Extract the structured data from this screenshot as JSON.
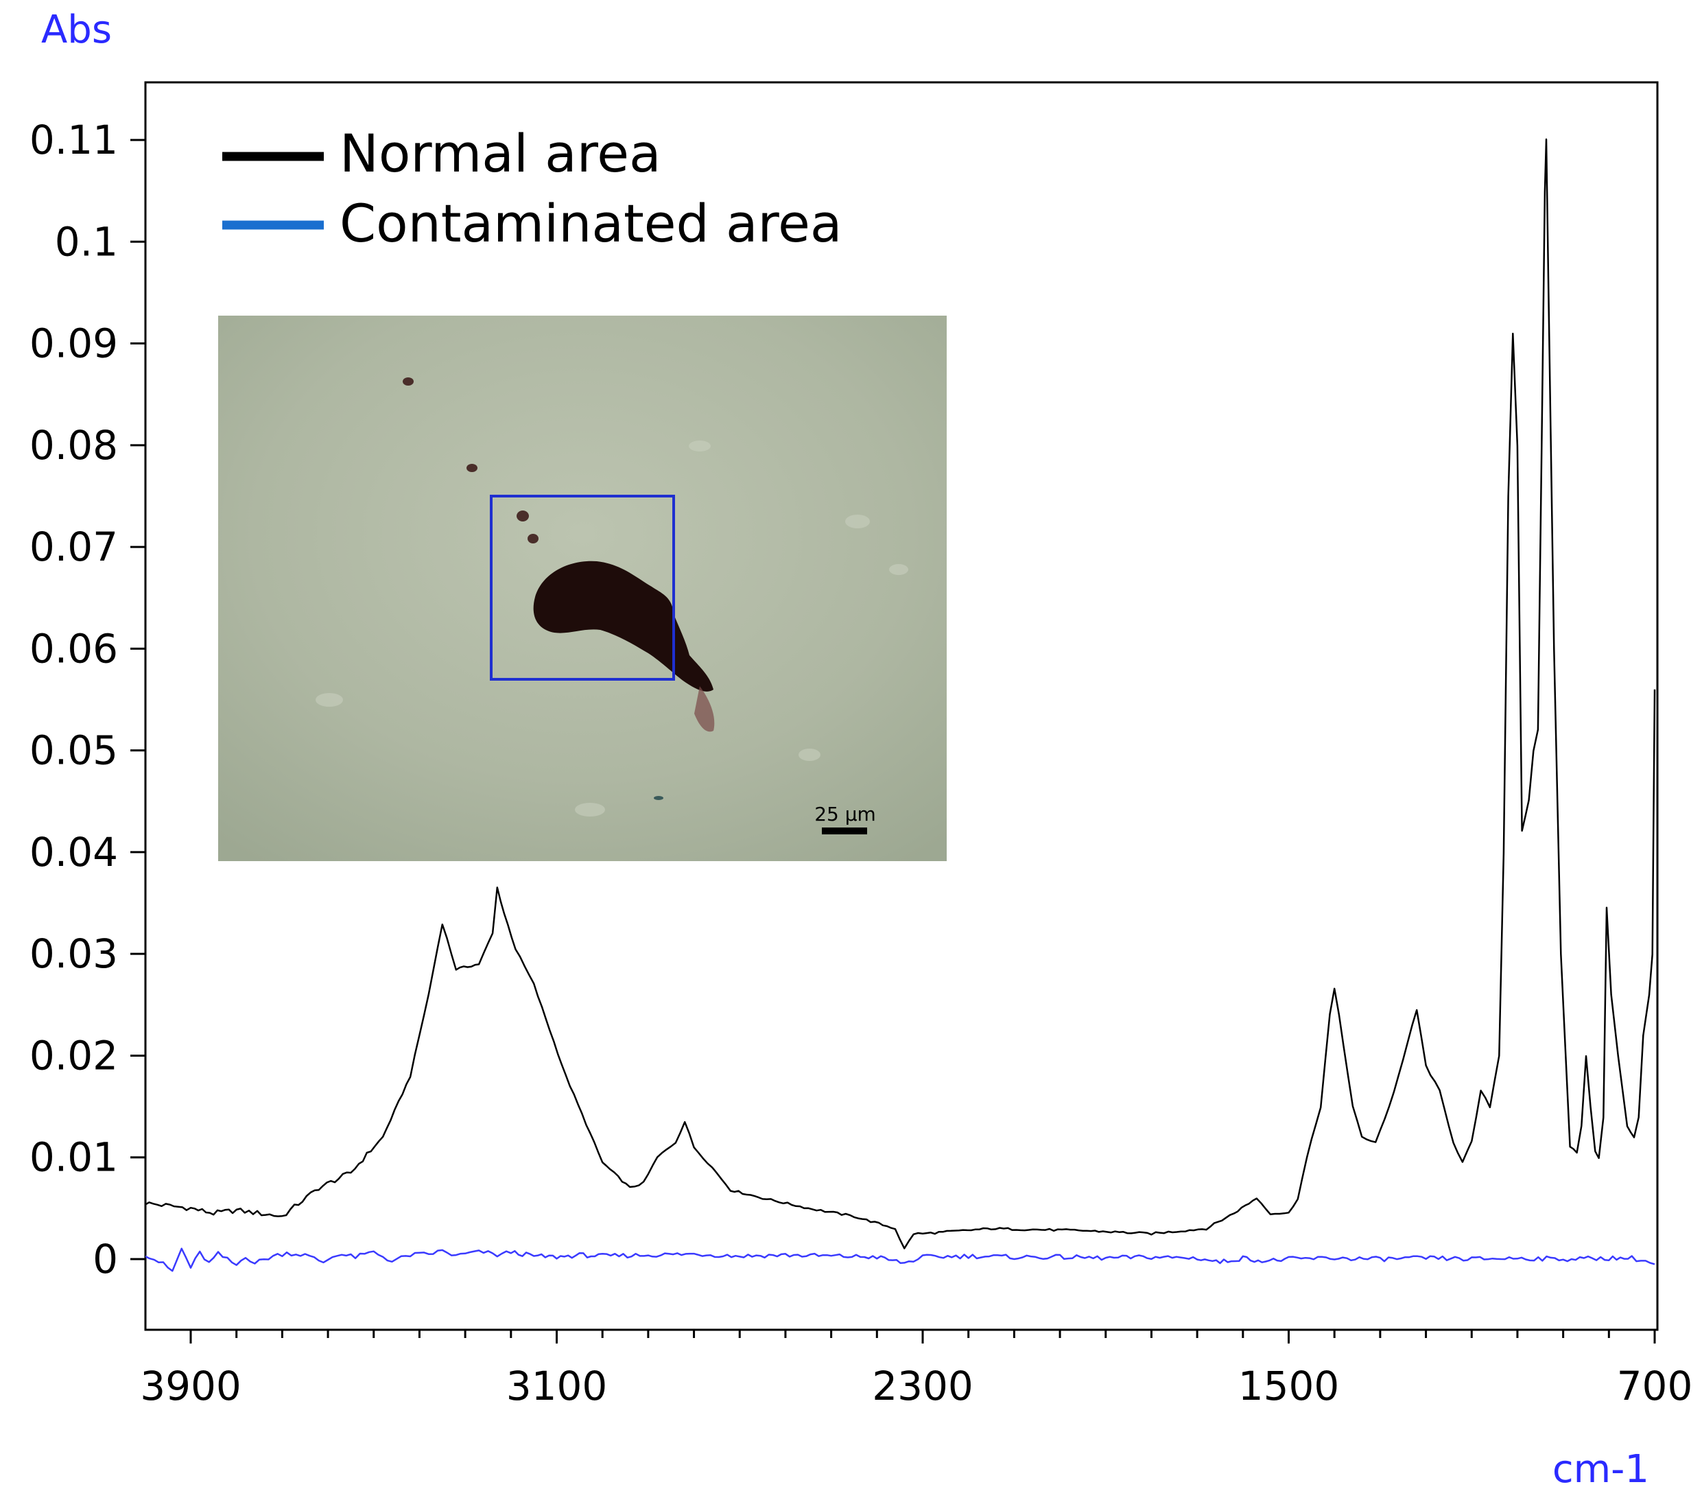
{
  "chart_data": {
    "type": "line",
    "title": "",
    "ylabel": "Abs",
    "xlabel": "cm-1",
    "xlim": [
      4000,
      700
    ],
    "ylim": [
      -0.007,
      0.117
    ],
    "x_ticks": [
      3900,
      3100,
      2300,
      1500,
      700
    ],
    "y_ticks": [
      0,
      0.01,
      0.02,
      0.03,
      0.04,
      0.05,
      0.06,
      0.07,
      0.08,
      0.09,
      0.1,
      0.11
    ],
    "y_tick_labels": [
      "0",
      "0.01",
      "0.02",
      "0.03",
      "0.04",
      "0.05",
      "0.06",
      "0.07",
      "0.08",
      "0.09",
      "0.1",
      "0.11"
    ],
    "legend": {
      "position": "top-left"
    },
    "series": [
      {
        "name": "Normal area",
        "color": "#000000",
        "points": [
          [
            4000,
            0.0055
          ],
          [
            3900,
            0.005
          ],
          [
            3850,
            0.0045
          ],
          [
            3800,
            0.0048
          ],
          [
            3700,
            0.0042
          ],
          [
            3620,
            0.007
          ],
          [
            3550,
            0.0085
          ],
          [
            3480,
            0.012
          ],
          [
            3420,
            0.018
          ],
          [
            3380,
            0.026
          ],
          [
            3350,
            0.033
          ],
          [
            3320,
            0.0285
          ],
          [
            3270,
            0.029
          ],
          [
            3240,
            0.032
          ],
          [
            3230,
            0.0365
          ],
          [
            3215,
            0.034
          ],
          [
            3190,
            0.0305
          ],
          [
            3150,
            0.027
          ],
          [
            3080,
            0.018
          ],
          [
            3000,
            0.0095
          ],
          [
            2940,
            0.007
          ],
          [
            2910,
            0.0075
          ],
          [
            2880,
            0.01
          ],
          [
            2840,
            0.0115
          ],
          [
            2820,
            0.0135
          ],
          [
            2800,
            0.011
          ],
          [
            2760,
            0.009
          ],
          [
            2720,
            0.0068
          ],
          [
            2650,
            0.006
          ],
          [
            2550,
            0.005
          ],
          [
            2450,
            0.0042
          ],
          [
            2360,
            0.003
          ],
          [
            2340,
            0.001
          ],
          [
            2320,
            0.0025
          ],
          [
            2300,
            0.0025
          ],
          [
            2150,
            0.003
          ],
          [
            1950,
            0.0028
          ],
          [
            1800,
            0.0025
          ],
          [
            1680,
            0.003
          ],
          [
            1620,
            0.0045
          ],
          [
            1570,
            0.006
          ],
          [
            1540,
            0.0045
          ],
          [
            1500,
            0.0045
          ],
          [
            1480,
            0.006
          ],
          [
            1460,
            0.01
          ],
          [
            1430,
            0.015
          ],
          [
            1410,
            0.024
          ],
          [
            1400,
            0.0265
          ],
          [
            1390,
            0.024
          ],
          [
            1360,
            0.015
          ],
          [
            1340,
            0.012
          ],
          [
            1310,
            0.0115
          ],
          [
            1280,
            0.015
          ],
          [
            1250,
            0.0195
          ],
          [
            1230,
            0.023
          ],
          [
            1220,
            0.0245
          ],
          [
            1200,
            0.019
          ],
          [
            1170,
            0.0165
          ],
          [
            1140,
            0.0115
          ],
          [
            1120,
            0.0095
          ],
          [
            1100,
            0.0115
          ],
          [
            1080,
            0.0165
          ],
          [
            1060,
            0.015
          ],
          [
            1040,
            0.02
          ],
          [
            1030,
            0.04
          ],
          [
            1020,
            0.075
          ],
          [
            1010,
            0.091
          ],
          [
            1000,
            0.08
          ],
          [
            990,
            0.042
          ],
          [
            975,
            0.045
          ],
          [
            965,
            0.05
          ],
          [
            955,
            0.052
          ],
          [
            947,
            0.08
          ],
          [
            940,
            0.105
          ],
          [
            937,
            0.11
          ],
          [
            932,
            0.095
          ],
          [
            920,
            0.06
          ],
          [
            905,
            0.03
          ],
          [
            885,
            0.011
          ],
          [
            870,
            0.0105
          ],
          [
            860,
            0.013
          ],
          [
            850,
            0.02
          ],
          [
            840,
            0.015
          ],
          [
            830,
            0.0105
          ],
          [
            822,
            0.01
          ],
          [
            812,
            0.014
          ],
          [
            805,
            0.0345
          ],
          [
            795,
            0.026
          ],
          [
            780,
            0.02
          ],
          [
            760,
            0.013
          ],
          [
            745,
            0.012
          ],
          [
            735,
            0.014
          ],
          [
            725,
            0.022
          ],
          [
            712,
            0.026
          ],
          [
            705,
            0.03
          ],
          [
            700,
            0.056
          ]
        ]
      },
      {
        "name": "Contaminated area",
        "color": "#3a3aff",
        "points": [
          [
            4000,
            0.0005
          ],
          [
            3980,
            0.0
          ],
          [
            3960,
            -0.0005
          ],
          [
            3940,
            -0.0012
          ],
          [
            3920,
            0.001
          ],
          [
            3900,
            -0.0008
          ],
          [
            3880,
            0.0006
          ],
          [
            3860,
            -0.0004
          ],
          [
            3840,
            0.0005
          ],
          [
            3800,
            -0.0006
          ],
          [
            3780,
            0.0003
          ],
          [
            3760,
            -0.0004
          ],
          [
            3720,
            0.0003
          ],
          [
            3690,
            0.0006
          ],
          [
            3650,
            0.0004
          ],
          [
            3610,
            -0.0003
          ],
          [
            3580,
            0.0005
          ],
          [
            3540,
            0.0002
          ],
          [
            3500,
            0.0007
          ],
          [
            3460,
            -0.0002
          ],
          [
            3420,
            0.0004
          ],
          [
            3380,
            0.0005
          ],
          [
            3350,
            0.0008
          ],
          [
            3320,
            0.0003
          ],
          [
            3290,
            0.0006
          ],
          [
            3260,
            0.0007
          ],
          [
            3230,
            0.0004
          ],
          [
            3200,
            0.0007
          ],
          [
            3150,
            0.0003
          ],
          [
            3100,
            0.0002
          ],
          [
            3050,
            0.0004
          ],
          [
            3000,
            0.0003
          ],
          [
            2900,
            0.0004
          ],
          [
            2800,
            0.0005
          ],
          [
            2700,
            0.0003
          ],
          [
            2600,
            0.0004
          ],
          [
            2500,
            0.0003
          ],
          [
            2400,
            0.0002
          ],
          [
            2340,
            -0.0004
          ],
          [
            2300,
            0.0002
          ],
          [
            2200,
            0.0003
          ],
          [
            2100,
            0.0002
          ],
          [
            2000,
            0.0002
          ],
          [
            1900,
            0.0001
          ],
          [
            1800,
            0.0002
          ],
          [
            1700,
            0.0001
          ],
          [
            1650,
            -0.0003
          ],
          [
            1600,
            0.0001
          ],
          [
            1550,
            -0.0002
          ],
          [
            1500,
            0.0
          ],
          [
            1400,
            0.0001
          ],
          [
            1300,
            0.0
          ],
          [
            1200,
            0.0001
          ],
          [
            1100,
            0.0
          ],
          [
            1000,
            0.0001
          ],
          [
            900,
            0.0
          ],
          [
            800,
            0.0001
          ],
          [
            750,
            0.0001
          ],
          [
            720,
            -0.0002
          ],
          [
            700,
            -0.0005
          ]
        ]
      }
    ]
  },
  "legend_items": [
    {
      "label": "Normal area",
      "color": "#000000"
    },
    {
      "label": "Contaminated area",
      "color": "#1a6fcf"
    }
  ],
  "inset": {
    "scale_bar_label": "25 µm",
    "box_color": "#1f2fd0"
  },
  "colors": {
    "unit_label": "#2a2aff"
  }
}
